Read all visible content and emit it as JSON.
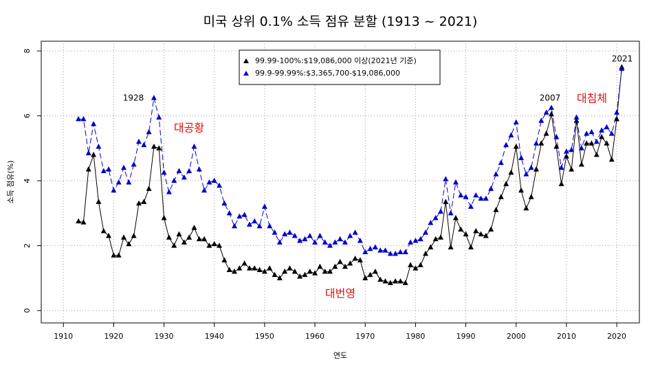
{
  "chart_data": {
    "type": "line",
    "title": "미국 상위 0.1% 소득 점유 분할 (1913 ~ 2021)",
    "x_label": "연도",
    "y_label": "소득 점유(%)",
    "x": [
      1913,
      1914,
      1915,
      1916,
      1917,
      1918,
      1919,
      1920,
      1921,
      1922,
      1923,
      1924,
      1925,
      1926,
      1927,
      1928,
      1929,
      1930,
      1931,
      1932,
      1933,
      1934,
      1935,
      1936,
      1937,
      1938,
      1939,
      1940,
      1941,
      1942,
      1943,
      1944,
      1945,
      1946,
      1947,
      1948,
      1949,
      1950,
      1951,
      1952,
      1953,
      1954,
      1955,
      1956,
      1957,
      1958,
      1959,
      1960,
      1961,
      1962,
      1963,
      1964,
      1965,
      1966,
      1967,
      1968,
      1969,
      1970,
      1971,
      1972,
      1973,
      1974,
      1975,
      1976,
      1977,
      1978,
      1979,
      1980,
      1981,
      1982,
      1983,
      1984,
      1985,
      1986,
      1987,
      1988,
      1989,
      1990,
      1991,
      1992,
      1993,
      1994,
      1995,
      1996,
      1997,
      1998,
      1999,
      2000,
      2001,
      2002,
      2003,
      2004,
      2005,
      2006,
      2007,
      2008,
      2009,
      2010,
      2011,
      2012,
      2013,
      2014,
      2015,
      2016,
      2017,
      2018,
      2019,
      2020,
      2021
    ],
    "series": [
      {
        "name": "99.99-100%:$19,086,000 이상(2021년 기준)",
        "color": "#000000",
        "dashed": false,
        "values": [
          2.75,
          2.72,
          4.35,
          4.8,
          3.35,
          2.45,
          2.3,
          1.7,
          1.7,
          2.25,
          2.05,
          2.3,
          3.3,
          3.35,
          3.75,
          5.05,
          5.0,
          2.85,
          2.25,
          2.0,
          2.35,
          2.1,
          2.25,
          2.55,
          2.2,
          2.2,
          2.0,
          2.05,
          2.0,
          1.55,
          1.25,
          1.2,
          1.3,
          1.45,
          1.3,
          1.3,
          1.25,
          1.2,
          1.3,
          1.1,
          1.0,
          1.2,
          1.3,
          1.2,
          1.05,
          1.1,
          1.2,
          1.15,
          1.35,
          1.2,
          1.2,
          1.35,
          1.5,
          1.35,
          1.45,
          1.6,
          1.55,
          1.0,
          1.1,
          1.2,
          0.95,
          0.9,
          0.85,
          0.9,
          0.9,
          0.85,
          1.4,
          1.3,
          1.4,
          1.75,
          1.95,
          2.2,
          2.25,
          3.35,
          1.95,
          2.85,
          2.5,
          2.35,
          1.95,
          2.45,
          2.35,
          2.3,
          2.5,
          3.1,
          3.5,
          3.9,
          4.25,
          5.05,
          3.7,
          3.15,
          3.5,
          4.35,
          5.15,
          5.45,
          6.05,
          5.05,
          3.9,
          4.75,
          4.35,
          5.85,
          4.5,
          5.15,
          5.15,
          4.8,
          5.35,
          5.15,
          4.65,
          5.9,
          7.5
        ]
      },
      {
        "name": "99.9-99.99%:$3,365,700-$19,086,000",
        "color": "#0000cc",
        "dashed": true,
        "values": [
          5.9,
          5.9,
          4.85,
          5.75,
          5.05,
          4.3,
          4.35,
          3.7,
          3.95,
          4.4,
          3.95,
          4.5,
          5.2,
          5.1,
          5.5,
          6.55,
          5.95,
          4.25,
          3.65,
          4.0,
          4.3,
          4.1,
          4.3,
          5.05,
          4.35,
          3.7,
          3.95,
          4.0,
          3.85,
          3.3,
          3.0,
          2.6,
          2.9,
          2.95,
          2.65,
          2.75,
          2.6,
          3.2,
          2.6,
          2.4,
          2.1,
          2.35,
          2.4,
          2.3,
          2.15,
          2.2,
          2.3,
          2.1,
          2.3,
          2.1,
          2.0,
          2.1,
          2.2,
          2.1,
          2.3,
          2.4,
          2.15,
          1.8,
          1.9,
          1.95,
          1.85,
          1.85,
          1.75,
          1.75,
          1.8,
          1.8,
          2.1,
          2.15,
          2.2,
          2.4,
          2.7,
          2.85,
          3.05,
          4.05,
          3.0,
          3.95,
          3.55,
          3.5,
          3.2,
          3.55,
          3.45,
          3.45,
          3.75,
          4.2,
          4.55,
          5.1,
          5.4,
          5.8,
          4.7,
          4.2,
          4.4,
          5.15,
          5.85,
          6.1,
          6.25,
          5.35,
          4.4,
          4.9,
          4.95,
          5.95,
          5.0,
          5.45,
          5.5,
          5.2,
          5.55,
          5.65,
          5.45,
          6.1,
          7.45
        ]
      }
    ],
    "annotations": [
      {
        "text": "1928",
        "color": "#000000"
      },
      {
        "text": "2007",
        "color": "#000000"
      },
      {
        "text": "2021",
        "color": "#000000"
      },
      {
        "text": "대공황",
        "color": "#e01010"
      },
      {
        "text": "대번영",
        "color": "#e01010"
      },
      {
        "text": "대침체",
        "color": "#e01010"
      }
    ],
    "xlim": [
      1905.6,
      2024.5
    ],
    "ylim": [
      -0.38,
      8.3
    ],
    "xticks": [
      1910,
      1920,
      1930,
      1940,
      1950,
      1960,
      1970,
      1980,
      1990,
      2000,
      2010,
      2020
    ],
    "yticks": [
      0,
      2,
      4,
      6,
      8
    ],
    "grid": true,
    "legend": "top"
  }
}
